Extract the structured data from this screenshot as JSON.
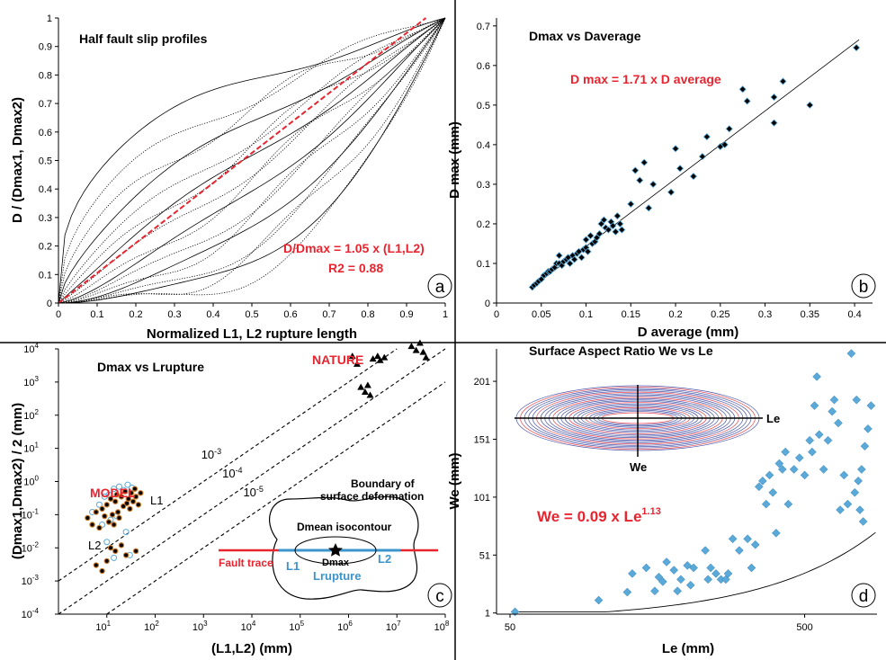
{
  "colors": {
    "red": "#e8242f",
    "blue": "#3b94cc",
    "lightblue": "#5aa9d8",
    "black": "#000000",
    "orange": "#c8782a"
  },
  "chart_data": [
    {
      "panel": "a",
      "type": "line",
      "title": "Half fault slip profiles",
      "xlabel": "Normalized L1, L2 rupture length",
      "ylabel": "D / (Dmax1, Dmax2)",
      "xlim": [
        0,
        1
      ],
      "ylim": [
        0,
        1
      ],
      "xticks": [
        "0",
        "0.1",
        "0.2",
        "0.3",
        "0.4",
        "0.5",
        "0.6",
        "0.7",
        "0.8",
        "0.9",
        "1"
      ],
      "yticks": [
        "0",
        "0.1",
        "0.2",
        "0.3",
        "0.4",
        "0.5",
        "0.6",
        "0.7",
        "0.8",
        "0.9",
        "1"
      ],
      "fit_line": {
        "x": [
          0,
          0.95
        ],
        "y": [
          0,
          1
        ]
      },
      "profile_exponents": [
        0.35,
        0.45,
        0.55,
        0.65,
        0.75,
        0.85,
        0.95,
        1.05,
        1.2,
        1.35,
        1.5,
        1.7,
        1.9,
        2.2,
        2.5,
        2.8,
        3.2
      ],
      "annotation": [
        "D/Dmax = 1.05 x (L1,L2)",
        "R2 = 0.88"
      ],
      "label": "a"
    },
    {
      "panel": "b",
      "type": "scatter",
      "title": "Dmax vs Daverage",
      "xlabel": "D average  (mm)",
      "ylabel": "D max  (mm)",
      "xlim": [
        0,
        0.42
      ],
      "ylim": [
        0,
        0.72
      ],
      "xticks": [
        "0",
        "0.05",
        "0.1",
        "0.15",
        "0.2",
        "0.25",
        "0.3",
        "0.35",
        "0.4"
      ],
      "yticks": [
        "0",
        "0.1",
        "0.2",
        "0.3",
        "0.4",
        "0.5",
        "0.6",
        "0.7"
      ],
      "fit_line": {
        "x": [
          0.04,
          0.405
        ],
        "y": [
          0.04,
          0.665
        ]
      },
      "annotation": "D max = 1.71 x D average",
      "points": [
        [
          0.04,
          0.04
        ],
        [
          0.042,
          0.045
        ],
        [
          0.045,
          0.05
        ],
        [
          0.047,
          0.055
        ],
        [
          0.05,
          0.06
        ],
        [
          0.053,
          0.07
        ],
        [
          0.056,
          0.075
        ],
        [
          0.058,
          0.08
        ],
        [
          0.06,
          0.08
        ],
        [
          0.062,
          0.085
        ],
        [
          0.065,
          0.09
        ],
        [
          0.067,
          0.1
        ],
        [
          0.07,
          0.1
        ],
        [
          0.07,
          0.12
        ],
        [
          0.073,
          0.095
        ],
        [
          0.075,
          0.105
        ],
        [
          0.078,
          0.11
        ],
        [
          0.08,
          0.115
        ],
        [
          0.082,
          0.1
        ],
        [
          0.085,
          0.12
        ],
        [
          0.087,
          0.11
        ],
        [
          0.09,
          0.125
        ],
        [
          0.092,
          0.13
        ],
        [
          0.095,
          0.115
        ],
        [
          0.097,
          0.135
        ],
        [
          0.1,
          0.14
        ],
        [
          0.1,
          0.16
        ],
        [
          0.102,
          0.13
        ],
        [
          0.105,
          0.17
        ],
        [
          0.107,
          0.15
        ],
        [
          0.11,
          0.155
        ],
        [
          0.112,
          0.165
        ],
        [
          0.115,
          0.175
        ],
        [
          0.117,
          0.2
        ],
        [
          0.12,
          0.21
        ],
        [
          0.122,
          0.19
        ],
        [
          0.125,
          0.185
        ],
        [
          0.128,
          0.205
        ],
        [
          0.13,
          0.195
        ],
        [
          0.133,
          0.18
        ],
        [
          0.135,
          0.22
        ],
        [
          0.138,
          0.2
        ],
        [
          0.14,
          0.185
        ],
        [
          0.15,
          0.25
        ],
        [
          0.155,
          0.335
        ],
        [
          0.16,
          0.31
        ],
        [
          0.165,
          0.355
        ],
        [
          0.17,
          0.24
        ],
        [
          0.175,
          0.3
        ],
        [
          0.195,
          0.28
        ],
        [
          0.2,
          0.39
        ],
        [
          0.205,
          0.34
        ],
        [
          0.22,
          0.32
        ],
        [
          0.23,
          0.37
        ],
        [
          0.235,
          0.42
        ],
        [
          0.25,
          0.395
        ],
        [
          0.255,
          0.4
        ],
        [
          0.26,
          0.44
        ],
        [
          0.275,
          0.54
        ],
        [
          0.28,
          0.51
        ],
        [
          0.31,
          0.455
        ],
        [
          0.31,
          0.52
        ],
        [
          0.32,
          0.56
        ],
        [
          0.35,
          0.5
        ],
        [
          0.402,
          0.645
        ]
      ],
      "label": "b"
    },
    {
      "panel": "c",
      "type": "scatter",
      "title": "Dmax vs Lrupture",
      "xlabel": "(L1,L2) (mm)",
      "ylabel": "(Dmax1,Dmax2) / 2 (mm)",
      "xscale": "log",
      "yscale": "log",
      "xlim": [
        1,
        100000000
      ],
      "ylim": [
        0.0001,
        10000
      ],
      "xtick_exponents": [
        "1",
        "2",
        "3",
        "4",
        "5",
        "6",
        "7",
        "8"
      ],
      "ytick_exponents": [
        "-4",
        "-3",
        "-2",
        "-1",
        "0",
        "1",
        "2",
        "3",
        "4"
      ],
      "tick_base": "10",
      "reference_lines": [
        {
          "label": "10",
          "exp": "-3",
          "ratio": 0.001
        },
        {
          "label": "10",
          "exp": "-4",
          "ratio": 0.0001
        },
        {
          "label": "10",
          "exp": "-5",
          "ratio": 1e-05
        }
      ],
      "labels": {
        "nature": "NATURE",
        "model": "MODEL",
        "l1": "L1",
        "l2": "L2"
      },
      "nature_points": [
        [
          1200000,
          6000
        ],
        [
          1500000,
          3500
        ],
        [
          1800000,
          700
        ],
        [
          2200000,
          500
        ],
        [
          2500000,
          800
        ],
        [
          3200000,
          5000
        ],
        [
          4000000,
          6000
        ],
        [
          4500000,
          4500
        ],
        [
          5500000,
          5500
        ],
        [
          2800000,
          400
        ],
        [
          20000000,
          12000
        ],
        [
          25000000,
          9000
        ],
        [
          30000000,
          15000
        ],
        [
          35000000,
          8000
        ],
        [
          40000000,
          5500
        ]
      ],
      "model_points": [
        [
          4,
          0.08
        ],
        [
          5,
          0.05
        ],
        [
          6,
          0.12
        ],
        [
          7,
          0.04
        ],
        [
          8,
          0.15
        ],
        [
          9,
          0.09
        ],
        [
          10,
          0.2
        ],
        [
          11,
          0.06
        ],
        [
          12,
          0.3
        ],
        [
          13,
          0.1
        ],
        [
          14,
          0.05
        ],
        [
          15,
          0.25
        ],
        [
          16,
          0.4
        ],
        [
          17,
          0.12
        ],
        [
          18,
          0.08
        ],
        [
          20,
          0.35
        ],
        [
          22,
          0.18
        ],
        [
          24,
          0.5
        ],
        [
          26,
          0.22
        ],
        [
          28,
          0.3
        ],
        [
          30,
          0.15
        ],
        [
          32,
          0.45
        ],
        [
          35,
          0.25
        ],
        [
          38,
          0.6
        ],
        [
          40,
          0.35
        ],
        [
          45,
          0.2
        ],
        [
          50,
          0.45
        ],
        [
          6,
          0.003
        ],
        [
          8,
          0.002
        ],
        [
          10,
          0.004
        ],
        [
          12,
          0.01
        ],
        [
          15,
          0.008
        ],
        [
          20,
          0.012
        ],
        [
          25,
          0.006
        ],
        [
          40,
          0.008
        ]
      ],
      "model_open_points": [
        [
          5,
          0.12
        ],
        [
          7,
          0.2
        ],
        [
          9,
          0.35
        ],
        [
          11,
          0.4
        ],
        [
          14,
          0.6
        ],
        [
          18,
          0.7
        ],
        [
          22,
          0.55
        ],
        [
          27,
          0.8
        ],
        [
          33,
          0.65
        ],
        [
          8,
          0.05
        ],
        [
          12,
          0.07
        ],
        [
          16,
          0.09
        ],
        [
          25,
          0.03
        ],
        [
          10,
          0.015
        ],
        [
          14,
          0.005
        ],
        [
          30,
          0.006
        ]
      ],
      "inset": {
        "boundary_label": [
          "Boundary of",
          "surface deformation"
        ],
        "isocontour_label": "Dmean isocontour",
        "dmax_label": "Dmax",
        "fault_trace": "Fault trace",
        "l1": "L1",
        "l2": "L2",
        "lrupture": "Lrupture"
      },
      "label": "c"
    },
    {
      "panel": "d",
      "type": "scatter",
      "title": "Surface Aspect Ratio We vs Le",
      "xlabel": "Le  (mm)",
      "ylabel": "We  (mm)",
      "xscale": "log",
      "xlim": [
        45,
        880
      ],
      "ylim": [
        0,
        229
      ],
      "xticks": [
        50,
        500
      ],
      "yticks": [
        1,
        51,
        101,
        151,
        201
      ],
      "fit": {
        "coef": 0.09,
        "exp": 1.13
      },
      "annotation": {
        "base": "We = 0.09 x Le",
        "exp": "1.13"
      },
      "inset_labels": {
        "le": "Le",
        "we": "We"
      },
      "points": [
        [
          52,
          2
        ],
        [
          100,
          12
        ],
        [
          125,
          19
        ],
        [
          130,
          35
        ],
        [
          145,
          40
        ],
        [
          155,
          20
        ],
        [
          160,
          32
        ],
        [
          165,
          28
        ],
        [
          170,
          45
        ],
        [
          180,
          38
        ],
        [
          185,
          20
        ],
        [
          190,
          30
        ],
        [
          200,
          42
        ],
        [
          205,
          25
        ],
        [
          210,
          40
        ],
        [
          230,
          55
        ],
        [
          235,
          30
        ],
        [
          240,
          40
        ],
        [
          250,
          35
        ],
        [
          260,
          30
        ],
        [
          270,
          30
        ],
        [
          275,
          35
        ],
        [
          285,
          65
        ],
        [
          300,
          55
        ],
        [
          320,
          65
        ],
        [
          330,
          40
        ],
        [
          340,
          60
        ],
        [
          350,
          110
        ],
        [
          360,
          115
        ],
        [
          370,
          95
        ],
        [
          380,
          120
        ],
        [
          390,
          105
        ],
        [
          400,
          70
        ],
        [
          410,
          130
        ],
        [
          420,
          125
        ],
        [
          430,
          140
        ],
        [
          440,
          95
        ],
        [
          460,
          125
        ],
        [
          480,
          135
        ],
        [
          500,
          120
        ],
        [
          520,
          150
        ],
        [
          530,
          140
        ],
        [
          540,
          180
        ],
        [
          550,
          205
        ],
        [
          560,
          155
        ],
        [
          580,
          125
        ],
        [
          600,
          150
        ],
        [
          620,
          175
        ],
        [
          630,
          185
        ],
        [
          650,
          165
        ],
        [
          660,
          90
        ],
        [
          680,
          120
        ],
        [
          700,
          95
        ],
        [
          720,
          225
        ],
        [
          740,
          105
        ],
        [
          750,
          185
        ],
        [
          760,
          115
        ],
        [
          770,
          90
        ],
        [
          780,
          125
        ],
        [
          790,
          80
        ],
        [
          800,
          145
        ],
        [
          820,
          160
        ],
        [
          840,
          180
        ]
      ],
      "label": "d"
    }
  ]
}
